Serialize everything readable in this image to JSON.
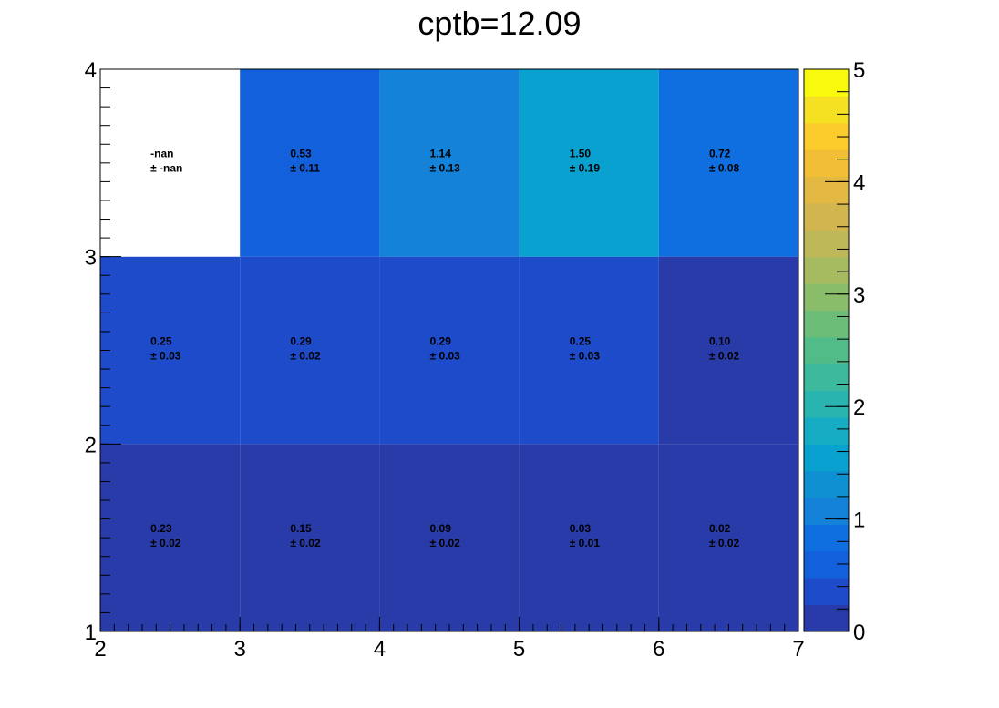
{
  "chart_data": {
    "type": "heatmap",
    "title": "cptb=12.09",
    "xlabel": "",
    "ylabel": "",
    "xlim": [
      2,
      7
    ],
    "ylim": [
      1,
      4
    ],
    "x_edges": [
      2,
      3,
      4,
      5,
      6,
      7
    ],
    "y_edges": [
      1,
      2,
      3,
      4
    ],
    "x_tick_labels": [
      "2",
      "3",
      "4",
      "5",
      "6",
      "7"
    ],
    "y_tick_labels": [
      "1",
      "2",
      "3",
      "4"
    ],
    "colorbar": {
      "range": [
        0,
        5
      ],
      "tick_labels": [
        "0",
        "1",
        "2",
        "3",
        "4",
        "5"
      ],
      "palette": [
        "#283ba8",
        "#1d4bc9",
        "#1260dc",
        "#0f6ee0",
        "#1382d8",
        "#0e90d2",
        "#08a1d0",
        "#15acc4",
        "#29b4b0",
        "#3db99d",
        "#52bc89",
        "#6cbd77",
        "#8abd6a",
        "#a6bb60",
        "#bfb858",
        "#d2b54f",
        "#e3b843",
        "#f2be35",
        "#fbcc2c",
        "#f6e022",
        "#f9f90e"
      ]
    },
    "cells": [
      {
        "xbin": 0,
        "ybin": 0,
        "value": 0.23,
        "text_value": "0.23",
        "text_error": "± 0.02"
      },
      {
        "xbin": 1,
        "ybin": 0,
        "value": 0.15,
        "text_value": "0.15",
        "text_error": "± 0.02"
      },
      {
        "xbin": 2,
        "ybin": 0,
        "value": 0.09,
        "text_value": "0.09",
        "text_error": "± 0.02"
      },
      {
        "xbin": 3,
        "ybin": 0,
        "value": 0.03,
        "text_value": "0.03",
        "text_error": "± 0.01"
      },
      {
        "xbin": 4,
        "ybin": 0,
        "value": 0.02,
        "text_value": "0.02",
        "text_error": "± 0.02"
      },
      {
        "xbin": 0,
        "ybin": 1,
        "value": 0.25,
        "text_value": "0.25",
        "text_error": "± 0.03"
      },
      {
        "xbin": 1,
        "ybin": 1,
        "value": 0.29,
        "text_value": "0.29",
        "text_error": "± 0.02"
      },
      {
        "xbin": 2,
        "ybin": 1,
        "value": 0.29,
        "text_value": "0.29",
        "text_error": "± 0.03"
      },
      {
        "xbin": 3,
        "ybin": 1,
        "value": 0.25,
        "text_value": "0.25",
        "text_error": "± 0.03"
      },
      {
        "xbin": 4,
        "ybin": 1,
        "value": 0.1,
        "text_value": "0.10",
        "text_error": "± 0.02"
      },
      {
        "xbin": 0,
        "ybin": 2,
        "value": null,
        "text_value": "-nan",
        "text_error": "± -nan"
      },
      {
        "xbin": 1,
        "ybin": 2,
        "value": 0.53,
        "text_value": "0.53",
        "text_error": "± 0.11"
      },
      {
        "xbin": 2,
        "ybin": 2,
        "value": 1.14,
        "text_value": "1.14",
        "text_error": "± 0.13"
      },
      {
        "xbin": 3,
        "ybin": 2,
        "value": 1.5,
        "text_value": "1.50",
        "text_error": "± 0.19"
      },
      {
        "xbin": 4,
        "ybin": 2,
        "value": 0.72,
        "text_value": "0.72",
        "text_error": "± 0.08"
      }
    ]
  }
}
